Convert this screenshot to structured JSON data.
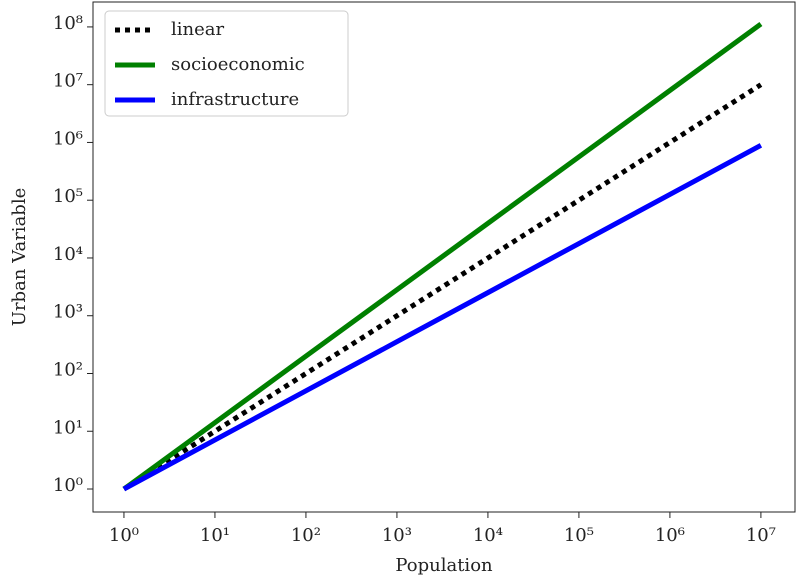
{
  "chart_data": {
    "type": "line",
    "xlabel": "Population",
    "ylabel": "Urban Variable",
    "log_x": true,
    "log_y": true,
    "x": [
      1,
      10,
      100,
      1000,
      10000,
      100000,
      1000000,
      10000000
    ],
    "series": [
      {
        "name": "linear",
        "color": "#000000",
        "linestyle": "dotted",
        "values": [
          1,
          10,
          100,
          1000,
          10000,
          100000,
          1000000,
          10000000
        ]
      },
      {
        "name": "socioeconomic",
        "color": "#008000",
        "linestyle": "solid",
        "values": [
          1,
          14.1,
          199.5,
          2818,
          39811,
          562341,
          7943282,
          112201845
        ]
      },
      {
        "name": "infrastructure",
        "color": "#0000ff",
        "linestyle": "solid",
        "values": [
          1,
          7.08,
          50.1,
          354.8,
          2512,
          17783,
          125893,
          891251
        ]
      }
    ],
    "xlim": [
      0.457,
      23700000
    ],
    "ylim": [
      0.4,
      270000000
    ],
    "xticks": [
      {
        "value": 1,
        "label": "10⁰"
      },
      {
        "value": 10,
        "label": "10¹"
      },
      {
        "value": 100,
        "label": "10²"
      },
      {
        "value": 1000,
        "label": "10³"
      },
      {
        "value": 10000,
        "label": "10⁴"
      },
      {
        "value": 100000,
        "label": "10⁵"
      },
      {
        "value": 1000000,
        "label": "10⁶"
      },
      {
        "value": 10000000,
        "label": "10⁷"
      }
    ],
    "yticks": [
      {
        "value": 1,
        "label": "10⁰"
      },
      {
        "value": 10,
        "label": "10¹"
      },
      {
        "value": 100,
        "label": "10²"
      },
      {
        "value": 1000,
        "label": "10³"
      },
      {
        "value": 10000,
        "label": "10⁴"
      },
      {
        "value": 100000,
        "label": "10⁵"
      },
      {
        "value": 1000000,
        "label": "10⁶"
      },
      {
        "value": 10000000,
        "label": "10⁷"
      },
      {
        "value": 100000000,
        "label": "10⁸"
      }
    ],
    "grid": false,
    "legend": "upper left"
  }
}
